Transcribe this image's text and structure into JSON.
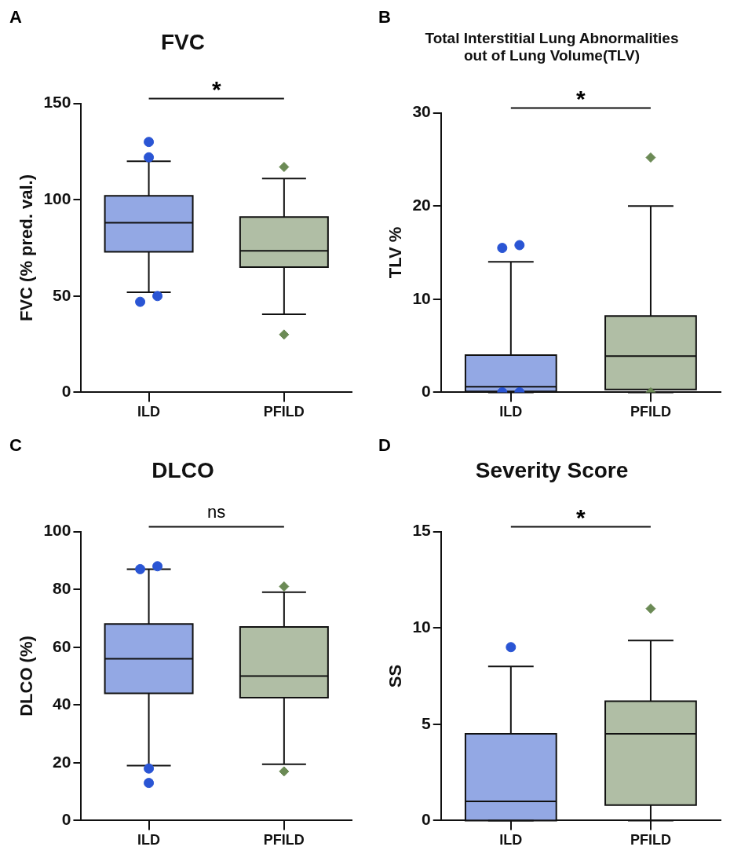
{
  "chart_data": [
    {
      "type": "box",
      "title": "FVC",
      "ylabel": "FVC (% pred. val.)",
      "categories": [
        "ILD",
        "PFILD"
      ],
      "colors": [
        "#93a8e4",
        "#b0bea5"
      ],
      "ylim": [
        0,
        150
      ],
      "yticks": [
        0,
        50,
        100,
        150
      ],
      "grid": false,
      "legend": false,
      "annotations": [
        "A",
        "*"
      ],
      "boxes": [
        {
          "low": 52,
          "q1": 73,
          "median": 88,
          "q3": 102,
          "high": 120
        },
        {
          "low": 40.5,
          "q1": 65,
          "median": 73.5,
          "q3": 91,
          "high": 111
        }
      ],
      "series": [
        {
          "type": "scatter",
          "color": "#2a55d4",
          "marker": "circle",
          "x": [
            "ILD",
            "ILD",
            "ILD",
            "ILD"
          ],
          "values": [
            130,
            122,
            47,
            50
          ]
        },
        {
          "type": "scatter",
          "color": "#6b8a55",
          "marker": "diamond",
          "x": [
            "PFILD",
            "PFILD"
          ],
          "values": [
            117,
            30
          ]
        }
      ]
    },
    {
      "type": "box",
      "title": "Total Interstitial Lung Abnormalities\nout of Lung Volume(TLV)",
      "ylabel": "TLV %",
      "categories": [
        "ILD",
        "PFILD"
      ],
      "colors": [
        "#93a8e4",
        "#b0bea5"
      ],
      "ylim": [
        0,
        30
      ],
      "yticks": [
        0,
        10,
        20,
        30
      ],
      "grid": false,
      "legend": false,
      "annotations": [
        "B",
        "*"
      ],
      "boxes": [
        {
          "low": 0,
          "q1": 0.1,
          "median": 0.6,
          "q3": 4,
          "high": 14
        },
        {
          "low": 0,
          "q1": 0.3,
          "median": 3.9,
          "q3": 8.2,
          "high": 20
        }
      ],
      "series": [
        {
          "type": "scatter",
          "color": "#2a55d4",
          "marker": "circle",
          "x": [
            "ILD",
            "ILD",
            "ILD",
            "ILD"
          ],
          "values": [
            15.5,
            15.8,
            0,
            0
          ]
        },
        {
          "type": "scatter",
          "color": "#6b8a55",
          "marker": "diamond",
          "x": [
            "PFILD",
            "PFILD"
          ],
          "values": [
            25.2,
            0
          ]
        }
      ]
    },
    {
      "type": "box",
      "title": "DLCO",
      "ylabel": "DLCO (%)",
      "categories": [
        "ILD",
        "PFILD"
      ],
      "colors": [
        "#93a8e4",
        "#b0bea5"
      ],
      "ylim": [
        0,
        100
      ],
      "yticks": [
        0,
        20,
        40,
        60,
        80,
        100
      ],
      "grid": false,
      "legend": false,
      "annotations": [
        "C",
        "ns"
      ],
      "boxes": [
        {
          "low": 19,
          "q1": 44,
          "median": 56,
          "q3": 68,
          "high": 87
        },
        {
          "low": 19.5,
          "q1": 42.5,
          "median": 50,
          "q3": 67,
          "high": 79
        }
      ],
      "series": [
        {
          "type": "scatter",
          "color": "#2a55d4",
          "marker": "circle",
          "x": [
            "ILD",
            "ILD",
            "ILD",
            "ILD"
          ],
          "values": [
            87,
            88,
            18,
            13
          ]
        },
        {
          "type": "scatter",
          "color": "#6b8a55",
          "marker": "diamond",
          "x": [
            "PFILD",
            "PFILD"
          ],
          "values": [
            81,
            17
          ]
        }
      ]
    },
    {
      "type": "box",
      "title": "Severity Score",
      "ylabel": "SS",
      "categories": [
        "ILD",
        "PFILD"
      ],
      "colors": [
        "#93a8e4",
        "#b0bea5"
      ],
      "ylim": [
        0,
        15
      ],
      "yticks": [
        0,
        5,
        10,
        15
      ],
      "grid": false,
      "legend": false,
      "annotations": [
        "D",
        "*"
      ],
      "boxes": [
        {
          "low": 0,
          "q1": 0,
          "median": 1,
          "q3": 4.5,
          "high": 8
        },
        {
          "low": 0,
          "q1": 0.8,
          "median": 4.5,
          "q3": 6.2,
          "high": 9.35
        }
      ],
      "series": [
        {
          "type": "scatter",
          "color": "#2a55d4",
          "marker": "circle",
          "x": [
            "ILD"
          ],
          "values": [
            9
          ]
        },
        {
          "type": "scatter",
          "color": "#6b8a55",
          "marker": "diamond",
          "x": [
            "PFILD"
          ],
          "values": [
            11
          ]
        }
      ]
    }
  ]
}
